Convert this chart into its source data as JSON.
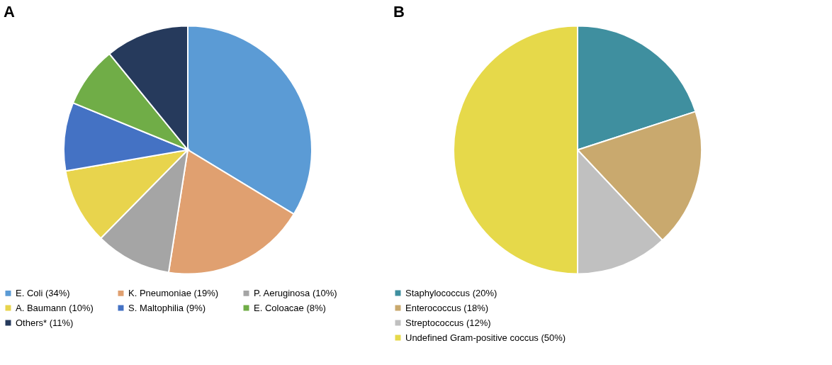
{
  "chart_data": [
    {
      "type": "pie",
      "title": "A",
      "categories": [
        "E. Coli (34%)",
        "K. Pneumoniae (19%)",
        "P. Aeruginosa (10%)",
        "A. Baumann (10%)",
        "S. Maltophilia (9%)",
        "E. Coloacae (8%)",
        "Others* (11%)"
      ],
      "values": [
        34,
        19,
        10,
        10,
        9,
        8,
        11
      ],
      "colors": [
        "#5b9bd5",
        "#e0a070",
        "#a5a5a5",
        "#e8d44d",
        "#4472c4",
        "#70ad47",
        "#263a5c"
      ],
      "legend": "bottom"
    },
    {
      "type": "pie",
      "title": "B",
      "categories": [
        "Staphylococcus (20%)",
        "Enterococcus (18%)",
        "Streptococcus (12%)",
        "Undefined Gram-positive coccus (50%)"
      ],
      "values": [
        20,
        18,
        12,
        50
      ],
      "colors": [
        "#3f8f9f",
        "#c9a96e",
        "#c0c0c0",
        "#e6d94a"
      ],
      "legend": "bottom left"
    }
  ]
}
